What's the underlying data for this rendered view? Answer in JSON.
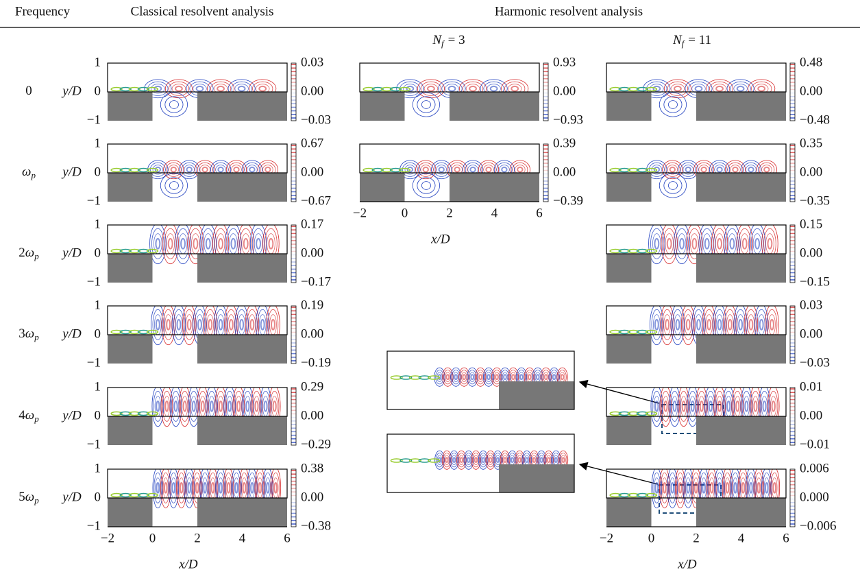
{
  "header": {
    "frequency": "Frequency",
    "classical": "Classical resolvent analysis",
    "harmonic": "Harmonic resolvent analysis"
  },
  "columns": {
    "nf3": {
      "symbol": "N",
      "subscript": "f",
      "equals": "= 3"
    },
    "nf11": {
      "symbol": "N",
      "subscript": "f",
      "equals": "= 11"
    }
  },
  "rows": [
    {
      "label": "0"
    },
    {
      "symbol": "ω",
      "subscript": "p"
    },
    {
      "coefficient": "2",
      "symbol": "ω",
      "subscript": "p"
    },
    {
      "coefficient": "3",
      "symbol": "ω",
      "subscript": "p"
    },
    {
      "coefficient": "4",
      "symbol": "ω",
      "subscript": "p"
    },
    {
      "coefficient": "5",
      "symbol": "ω",
      "subscript": "p"
    }
  ],
  "axes": {
    "ylabel": "y/D",
    "xlabel": "x/D",
    "yticks": [
      "1",
      "0",
      "−1"
    ],
    "xticks": [
      "−2",
      "0",
      "2",
      "4",
      "6"
    ]
  },
  "classical": [
    {
      "colorbar": [
        "0.03",
        "0.00",
        "−0.03"
      ]
    },
    {
      "colorbar": [
        "0.67",
        "0.00",
        "−0.67"
      ]
    },
    {
      "colorbar": [
        "0.17",
        "0.00",
        "−0.17"
      ]
    },
    {
      "colorbar": [
        "0.19",
        "0.00",
        "−0.19"
      ]
    },
    {
      "colorbar": [
        "0.29",
        "0.00",
        "−0.29"
      ]
    },
    {
      "colorbar": [
        "0.38",
        "0.00",
        "−0.38"
      ]
    }
  ],
  "nf3": [
    {
      "colorbar": [
        "0.93",
        "0.00",
        "−0.93"
      ]
    },
    {
      "colorbar": [
        "0.39",
        "0.00",
        "−0.39"
      ]
    }
  ],
  "nf11": [
    {
      "colorbar": [
        "0.48",
        "0.00",
        "−0.48"
      ]
    },
    {
      "colorbar": [
        "0.35",
        "0.00",
        "−0.35"
      ]
    },
    {
      "colorbar": [
        "0.15",
        "0.00",
        "−0.15"
      ]
    },
    {
      "colorbar": [
        "0.03",
        "0.00",
        "−0.03"
      ]
    },
    {
      "colorbar": [
        "0.01",
        "0.00",
        "−0.01"
      ]
    },
    {
      "colorbar": [
        "0.006",
        "0.000",
        "−0.006"
      ]
    }
  ]
}
